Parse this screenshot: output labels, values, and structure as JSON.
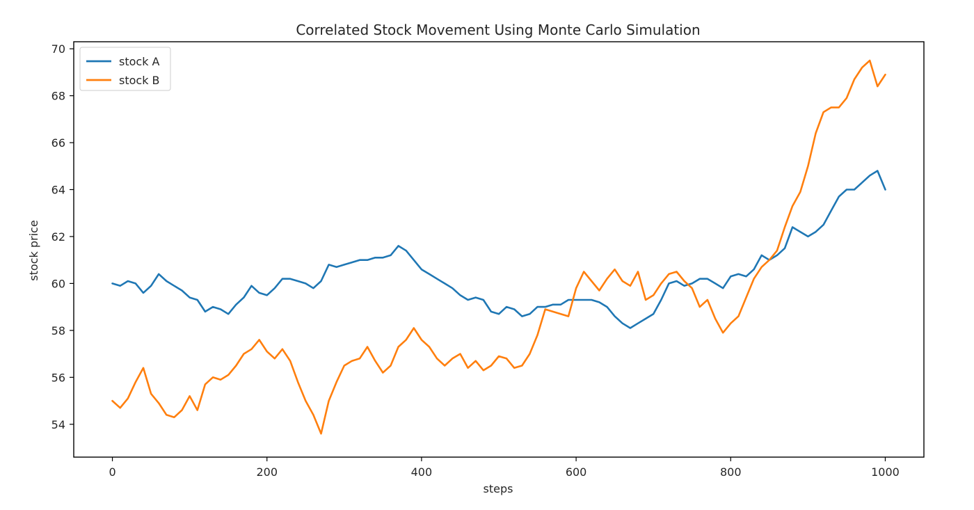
{
  "chart_data": {
    "type": "line",
    "title": "Correlated Stock Movement Using Monte Carlo Simulation",
    "xlabel": "steps",
    "ylabel": "stock price",
    "xlim": [
      -50,
      1050
    ],
    "ylim": [
      52.6,
      70.3
    ],
    "xticks": [
      0,
      200,
      400,
      600,
      800,
      1000
    ],
    "xtick_labels": [
      "0",
      "200",
      "400",
      "600",
      "800",
      "1000"
    ],
    "yticks": [
      54,
      56,
      58,
      60,
      62,
      64,
      66,
      68,
      70
    ],
    "ytick_labels": [
      "54",
      "56",
      "58",
      "60",
      "62",
      "64",
      "66",
      "68",
      "70"
    ],
    "grid": false,
    "legend_position": "top-left",
    "series": [
      {
        "name": "stock A",
        "color": "#1f77b4",
        "x": [
          0,
          10,
          20,
          30,
          40,
          50,
          60,
          70,
          80,
          90,
          100,
          110,
          120,
          130,
          140,
          150,
          160,
          170,
          180,
          190,
          200,
          210,
          220,
          230,
          240,
          250,
          260,
          270,
          280,
          290,
          300,
          310,
          320,
          330,
          340,
          350,
          360,
          370,
          380,
          390,
          400,
          410,
          420,
          430,
          440,
          450,
          460,
          470,
          480,
          490,
          500,
          510,
          520,
          530,
          540,
          550,
          560,
          570,
          580,
          590,
          600,
          610,
          620,
          630,
          640,
          650,
          660,
          670,
          680,
          690,
          700,
          710,
          720,
          730,
          740,
          750,
          760,
          770,
          780,
          790,
          800,
          810,
          820,
          830,
          840,
          850,
          860,
          870,
          880,
          890,
          900,
          910,
          920,
          930,
          940,
          950,
          960,
          970,
          980,
          990,
          1000
        ],
        "values": [
          60.0,
          59.9,
          60.1,
          60.0,
          59.6,
          59.9,
          60.4,
          60.1,
          59.9,
          59.7,
          59.4,
          59.3,
          58.8,
          59.0,
          58.9,
          58.7,
          59.1,
          59.4,
          59.9,
          59.6,
          59.5,
          59.8,
          60.2,
          60.2,
          60.1,
          60.0,
          59.8,
          60.1,
          60.8,
          60.7,
          60.8,
          60.9,
          61.0,
          61.0,
          61.1,
          61.1,
          61.2,
          61.6,
          61.4,
          61.0,
          60.6,
          60.4,
          60.2,
          60.0,
          59.8,
          59.5,
          59.3,
          59.4,
          59.3,
          58.8,
          58.7,
          59.0,
          58.9,
          58.6,
          58.7,
          59.0,
          59.0,
          59.1,
          59.1,
          59.3,
          59.3,
          59.3,
          59.3,
          59.2,
          59.0,
          58.6,
          58.3,
          58.1,
          58.3,
          58.5,
          58.7,
          59.3,
          60.0,
          60.1,
          59.9,
          60.0,
          60.2,
          60.2,
          60.0,
          59.8,
          60.3,
          60.4,
          60.3,
          60.6,
          61.2,
          61.0,
          61.2,
          61.5,
          62.4,
          62.2,
          62.0,
          62.2,
          62.5,
          63.1,
          63.7,
          64.0,
          64.0,
          64.3,
          64.6,
          64.8,
          64.0
        ]
      },
      {
        "name": "stock B",
        "color": "#ff7f0e",
        "x": [
          0,
          10,
          20,
          30,
          40,
          50,
          60,
          70,
          80,
          90,
          100,
          110,
          120,
          130,
          140,
          150,
          160,
          170,
          180,
          190,
          200,
          210,
          220,
          230,
          240,
          250,
          260,
          270,
          280,
          290,
          300,
          310,
          320,
          330,
          340,
          350,
          360,
          370,
          380,
          390,
          400,
          410,
          420,
          430,
          440,
          450,
          460,
          470,
          480,
          490,
          500,
          510,
          520,
          530,
          540,
          550,
          560,
          570,
          580,
          590,
          600,
          610,
          620,
          630,
          640,
          650,
          660,
          670,
          680,
          690,
          700,
          710,
          720,
          730,
          740,
          750,
          760,
          770,
          780,
          790,
          800,
          810,
          820,
          830,
          840,
          850,
          860,
          870,
          880,
          890,
          900,
          910,
          920,
          930,
          940,
          950,
          960,
          970,
          980,
          990,
          1000
        ],
        "values": [
          55.0,
          54.7,
          55.1,
          55.8,
          56.4,
          55.3,
          54.9,
          54.4,
          54.3,
          54.6,
          55.2,
          54.6,
          55.7,
          56.0,
          55.9,
          56.1,
          56.5,
          57.0,
          57.2,
          57.6,
          57.1,
          56.8,
          57.2,
          56.7,
          55.8,
          55.0,
          54.4,
          53.6,
          55.0,
          55.8,
          56.5,
          56.7,
          56.8,
          57.3,
          56.7,
          56.2,
          56.5,
          57.3,
          57.6,
          58.1,
          57.6,
          57.3,
          56.8,
          56.5,
          56.8,
          57.0,
          56.4,
          56.7,
          56.3,
          56.5,
          56.9,
          56.8,
          56.4,
          56.5,
          57.0,
          57.8,
          58.9,
          58.8,
          58.7,
          58.6,
          59.8,
          60.5,
          60.1,
          59.7,
          60.2,
          60.6,
          60.1,
          59.9,
          60.5,
          59.3,
          59.5,
          60.0,
          60.4,
          60.5,
          60.1,
          59.8,
          59.0,
          59.3,
          58.5,
          57.9,
          58.3,
          58.6,
          59.4,
          60.2,
          60.7,
          61.0,
          61.4,
          62.4,
          63.3,
          63.9,
          65.0,
          66.4,
          67.3,
          67.5,
          67.5,
          67.9,
          68.7,
          69.2,
          69.5,
          68.4,
          68.9
        ]
      }
    ]
  }
}
